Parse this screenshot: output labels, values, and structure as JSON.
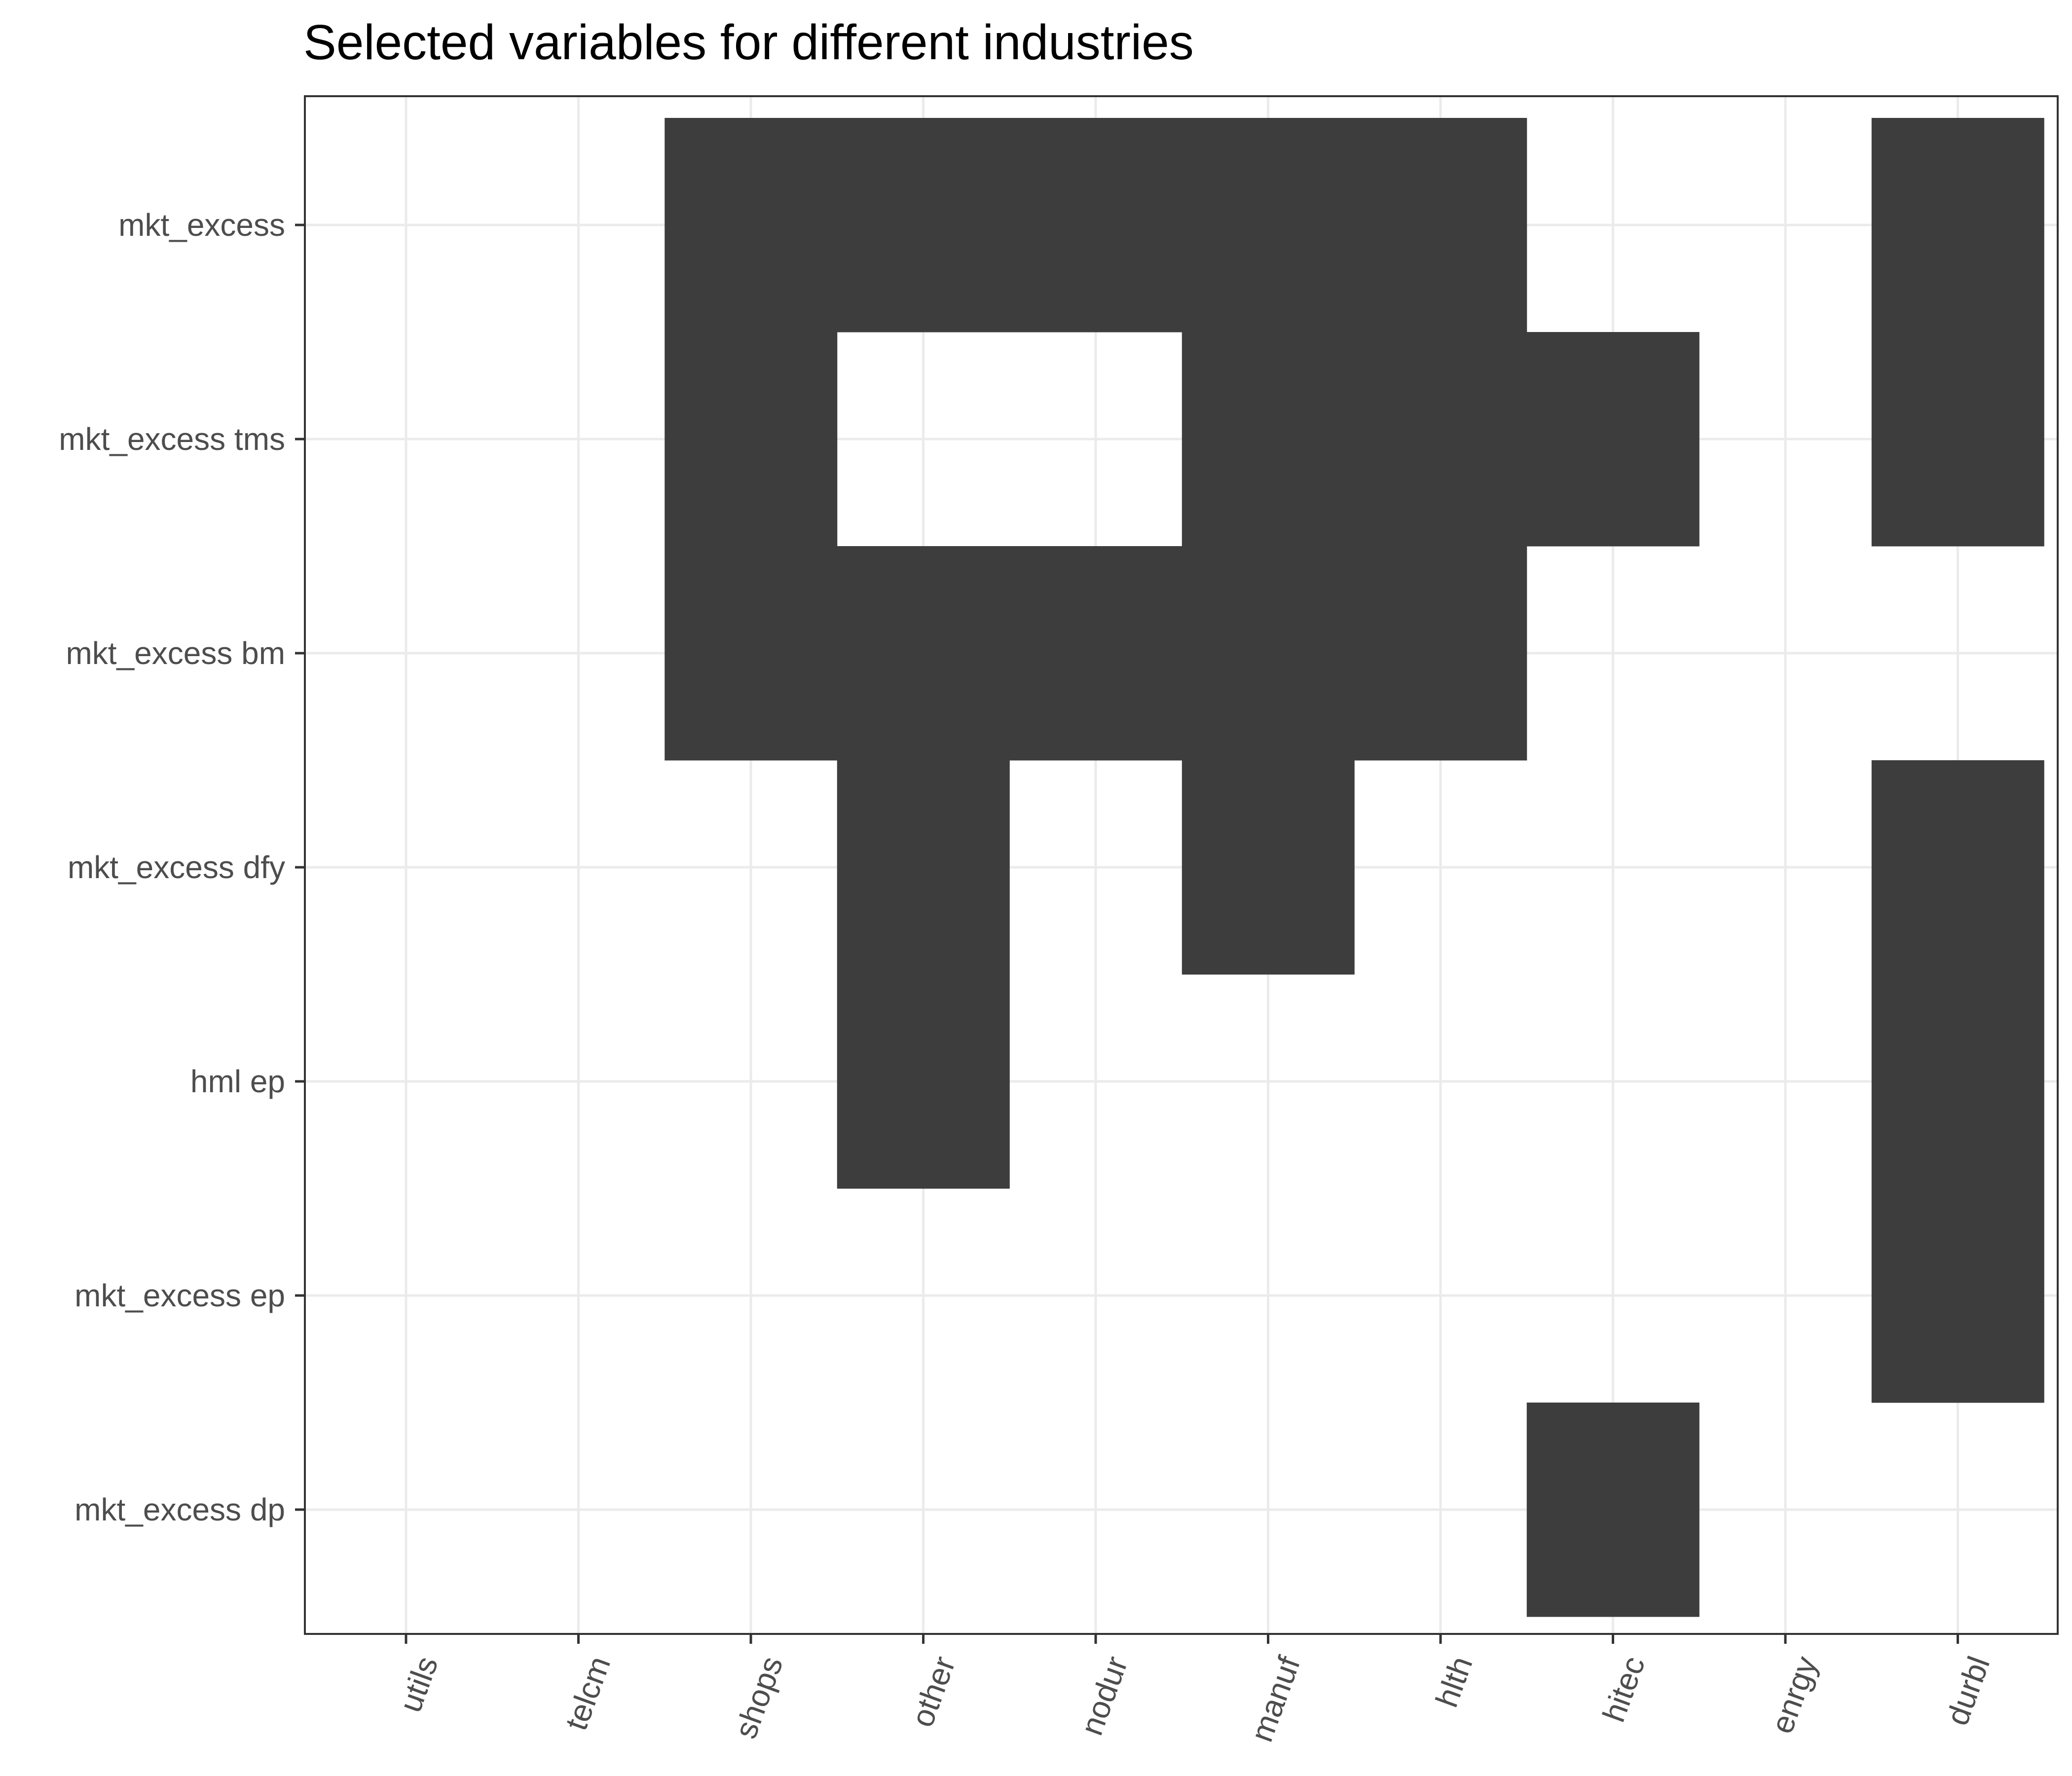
{
  "chart_data": {
    "type": "heatmap",
    "title": "Selected variables for different industries",
    "xlabel": "",
    "ylabel": "",
    "x_categories": [
      "utils",
      "telcm",
      "shops",
      "other",
      "nodur",
      "manuf",
      "hlth",
      "hitec",
      "enrgy",
      "durbl"
    ],
    "y_categories": [
      "mkt_excess",
      "mkt_excess tms",
      "mkt_excess bm",
      "mkt_excess dfy",
      "hml ep",
      "mkt_excess ep",
      "mkt_excess dp"
    ],
    "values": [
      [
        0,
        0,
        1,
        1,
        1,
        1,
        1,
        0,
        0,
        1
      ],
      [
        0,
        0,
        1,
        0,
        0,
        1,
        1,
        1,
        0,
        1
      ],
      [
        0,
        0,
        1,
        1,
        1,
        1,
        1,
        0,
        0,
        0
      ],
      [
        0,
        0,
        0,
        1,
        0,
        1,
        0,
        0,
        0,
        1
      ],
      [
        0,
        0,
        0,
        1,
        0,
        0,
        0,
        0,
        0,
        1
      ],
      [
        0,
        0,
        0,
        0,
        0,
        0,
        0,
        0,
        0,
        1
      ],
      [
        0,
        0,
        0,
        0,
        0,
        0,
        0,
        1,
        0,
        0
      ]
    ],
    "grid": true,
    "legend": "none",
    "colors": {
      "selected": "#3d3d3d",
      "background": "#ffffff",
      "grid": "#ebebeb",
      "border": "#333333"
    }
  }
}
